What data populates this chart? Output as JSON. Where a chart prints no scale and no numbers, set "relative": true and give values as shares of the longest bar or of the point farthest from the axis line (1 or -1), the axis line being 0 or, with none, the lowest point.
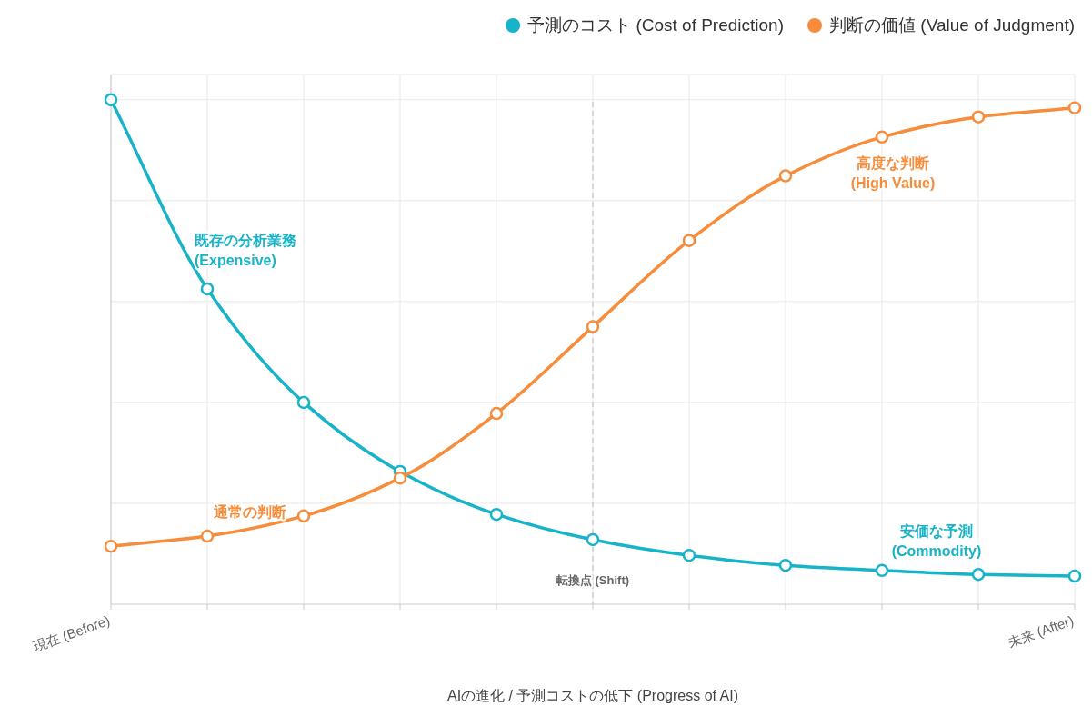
{
  "chart_data": {
    "type": "line",
    "relative": true,
    "xlabel": "AIの進化 / 予測コストの低下 (Progress of AI)",
    "categories": [
      "現在 (Before)",
      null,
      null,
      null,
      null,
      null,
      null,
      null,
      null,
      null,
      "未来 (After)"
    ],
    "series": [
      {
        "name": "予測のコスト (Cost of Prediction)",
        "color": "#17b3c9",
        "values": [
          1.0,
          0.625,
          0.4,
          0.263,
          0.178,
          0.128,
          0.097,
          0.077,
          0.067,
          0.059,
          0.056
        ]
      },
      {
        "name": "判断の価値 (Value of Judgment)",
        "color": "#f78c3a",
        "values": [
          0.115,
          0.135,
          0.175,
          0.25,
          0.378,
          0.55,
          0.721,
          0.849,
          0.926,
          0.966,
          0.984
        ]
      }
    ],
    "annotations": [
      "既存の分析業務\n(Expensive)",
      "高度な判断\n(High Value)",
      "安価な予測\n(Commodity)",
      "通常の判断",
      "転換点 (Shift)"
    ],
    "grid": true,
    "legend": "top right",
    "marker": "circle",
    "line_style": "solid"
  }
}
